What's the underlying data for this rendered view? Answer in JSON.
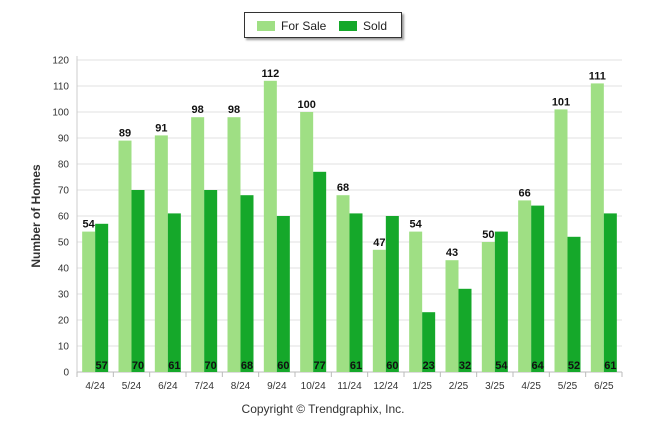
{
  "chart_data": {
    "type": "bar",
    "categories": [
      "4/24",
      "5/24",
      "6/24",
      "7/24",
      "8/24",
      "9/24",
      "10/24",
      "11/24",
      "12/24",
      "1/25",
      "2/25",
      "3/25",
      "4/25",
      "5/25",
      "6/25"
    ],
    "series": [
      {
        "name": "For Sale",
        "color": "#9fdf84",
        "values": [
          54,
          89,
          91,
          98,
          98,
          112,
          100,
          68,
          47,
          54,
          43,
          50,
          66,
          101,
          111
        ]
      },
      {
        "name": "Sold",
        "color": "#15a82a",
        "values": [
          57,
          70,
          61,
          70,
          68,
          60,
          77,
          61,
          60,
          23,
          32,
          54,
          64,
          52,
          61
        ]
      }
    ],
    "ylabel": "Number of Homes",
    "ylim": [
      0,
      120
    ],
    "yticks": [
      0,
      10,
      20,
      30,
      40,
      50,
      60,
      70,
      80,
      90,
      100,
      110,
      120
    ],
    "grid": true,
    "legend_position": "top-center"
  },
  "legend": {
    "for_sale": "For Sale",
    "sold": "Sold"
  },
  "footer": {
    "copyright": "Copyright © Trendgraphix, Inc."
  }
}
